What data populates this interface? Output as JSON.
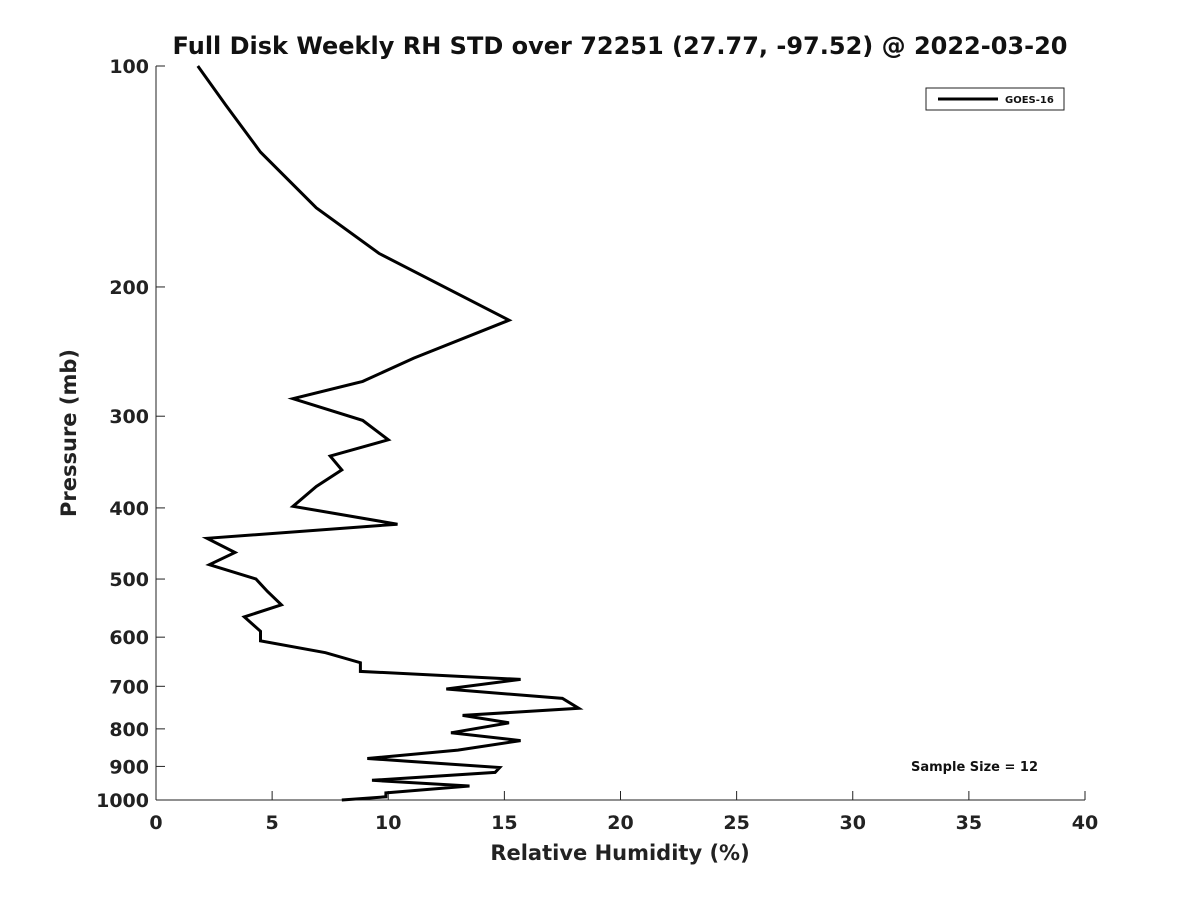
{
  "chart_data": {
    "type": "line",
    "title": "Full Disk Weekly RH STD over 72251 (27.77, -97.52) @ 2022-03-20",
    "xlabel": "Relative Humidity (%)",
    "ylabel": "Pressure (mb)",
    "xlim": [
      0,
      40
    ],
    "ylim": [
      100,
      1000
    ],
    "y_scale": "log",
    "y_inverted": true,
    "x_ticks": [
      0,
      5,
      10,
      15,
      20,
      25,
      30,
      35,
      40
    ],
    "x_tick_labels": [
      "0",
      "5",
      "10",
      "15",
      "20",
      "25",
      "30",
      "35",
      "40"
    ],
    "y_ticks": [
      100,
      200,
      300,
      400,
      500,
      600,
      700,
      800,
      900,
      1000
    ],
    "y_tick_labels": [
      "100",
      "200",
      "300",
      "400",
      "500",
      "600",
      "700",
      "800",
      "900",
      "1000"
    ],
    "grid": false,
    "legend_position": "top-right",
    "annotation": "Sample Size = 12",
    "series": [
      {
        "name": "GOES-16",
        "color": "#000000",
        "x": [
          1.8,
          3.0,
          4.5,
          6.9,
          9.6,
          15.2,
          11.1,
          8.9,
          5.9,
          8.9,
          10.0,
          7.5,
          8.0,
          6.9,
          5.9,
          10.4,
          2.2,
          3.4,
          2.3,
          4.3,
          4.8,
          5.4,
          3.8,
          4.5,
          4.5,
          7.3,
          8.8,
          8.8,
          15.7,
          12.5,
          17.5,
          18.2,
          13.2,
          15.2,
          12.7,
          15.7,
          13.0,
          9.1,
          14.8,
          14.6,
          9.3,
          13.5,
          9.9,
          9.9,
          8.0
        ],
        "y": [
          100,
          113,
          131,
          156,
          180,
          222,
          250,
          269,
          284,
          304,
          323,
          340,
          355,
          374,
          398,
          421,
          440,
          460,
          478,
          500,
          520,
          542,
          563,
          589,
          607,
          630,
          650,
          668,
          685,
          706,
          727,
          750,
          767,
          785,
          810,
          830,
          855,
          878,
          903,
          917,
          940,
          957,
          978,
          990,
          1000
        ]
      }
    ]
  }
}
